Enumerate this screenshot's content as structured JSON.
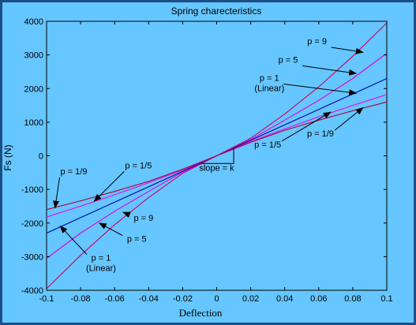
{
  "chart_data": {
    "type": "line",
    "title": "Spring charecteristics",
    "xlabel": "Deflection",
    "ylabel": "Fs (N)",
    "xlim": [
      -0.1,
      0.1
    ],
    "ylim": [
      -4000,
      4000
    ],
    "x_ticks": [
      -0.1,
      -0.08,
      -0.06,
      -0.04,
      -0.02,
      0,
      0.02,
      0.04,
      0.06,
      0.08,
      0.1
    ],
    "x_tick_labels": [
      "-0.1",
      "-0.08",
      "-0.06",
      "-0.04",
      "-0.02",
      "0",
      "0.02",
      "0.04",
      "0.06",
      "0.08",
      "0.1"
    ],
    "y_ticks": [
      -4000,
      -3000,
      -2000,
      -1000,
      0,
      1000,
      2000,
      3000,
      4000
    ],
    "y_tick_labels": [
      "-4000",
      "-3000",
      "-2000",
      "-1000",
      "0",
      "1000",
      "2000",
      "3000",
      "4000"
    ],
    "grid": false,
    "series": [
      {
        "name": "p = 9",
        "color": "#cc0066",
        "x": [
          -0.1,
          -0.08,
          -0.06,
          -0.04,
          -0.02,
          0,
          0.02,
          0.04,
          0.06,
          0.08,
          0.1
        ],
        "y": [
          -3950,
          -2960,
          -2050,
          -1240,
          -520,
          0,
          520,
          1240,
          2050,
          2960,
          3950
        ]
      },
      {
        "name": "p = 5",
        "color": "#dd00dd",
        "x": [
          -0.1,
          -0.08,
          -0.06,
          -0.04,
          -0.02,
          0,
          0.02,
          0.04,
          0.06,
          0.08,
          0.1
        ],
        "y": [
          -3050,
          -2300,
          -1650,
          -1060,
          -480,
          0,
          480,
          1060,
          1650,
          2300,
          3050
        ]
      },
      {
        "name": "p = 1 (Linear)",
        "color": "#0000aa",
        "x": [
          -0.1,
          -0.08,
          -0.06,
          -0.04,
          -0.02,
          0,
          0.02,
          0.04,
          0.06,
          0.08,
          0.1
        ],
        "y": [
          -2300,
          -1840,
          -1380,
          -920,
          -460,
          0,
          460,
          920,
          1380,
          1840,
          2300
        ]
      },
      {
        "name": "p = 1/5",
        "color": "#ee00ee",
        "x": [
          -0.1,
          -0.08,
          -0.06,
          -0.04,
          -0.02,
          0,
          0.02,
          0.04,
          0.06,
          0.08,
          0.1
        ],
        "y": [
          -1820,
          -1500,
          -1160,
          -800,
          -420,
          0,
          420,
          800,
          1160,
          1500,
          1820
        ]
      },
      {
        "name": "p = 1/9",
        "color": "#aa0033",
        "x": [
          -0.1,
          -0.08,
          -0.06,
          -0.04,
          -0.02,
          0,
          0.02,
          0.04,
          0.06,
          0.08,
          0.1
        ],
        "y": [
          -1600,
          -1340,
          -1060,
          -760,
          -400,
          0,
          400,
          760,
          1060,
          1340,
          1600
        ]
      }
    ],
    "annotations": [
      {
        "text": "p = 9",
        "tx": 0.059,
        "ty": 3320,
        "ax": 0.086,
        "ay": 3080
      },
      {
        "text": "p = 5",
        "tx": 0.042,
        "ty": 2770,
        "ax": 0.082,
        "ay": 2450
      },
      {
        "text": "p = 1",
        "text2": "(Linear)",
        "tx": 0.031,
        "ty": 2230,
        "ax": 0.082,
        "ay": 1860
      },
      {
        "text": "p = 1/5",
        "tx": 0.03,
        "ty": 250,
        "ax": 0.067,
        "ay": 1300
      },
      {
        "text": "p = 1/9",
        "tx": 0.061,
        "ty": 570,
        "ax": 0.086,
        "ay": 1430
      },
      {
        "text": "p = 1/9",
        "tx": -0.084,
        "ty": -550,
        "ax": -0.095,
        "ay": -1550
      },
      {
        "text": "p = 1/5",
        "tx": -0.046,
        "ty": -370,
        "ax": -0.072,
        "ay": -1350
      },
      {
        "text": "p = 9",
        "tx": -0.043,
        "ty": -1940,
        "ax": -0.055,
        "ay": -1680
      },
      {
        "text": "p = 5",
        "tx": -0.047,
        "ty": -2560,
        "ax": -0.069,
        "ay": -2000
      },
      {
        "text": "p = 1",
        "text2": "(Linear)",
        "tx": -0.068,
        "ty": -3120,
        "ax": -0.092,
        "ay": -2090
      },
      {
        "text": "slope = k",
        "tx": 0.0,
        "ty": -440,
        "ax": null,
        "ay": null
      }
    ]
  }
}
